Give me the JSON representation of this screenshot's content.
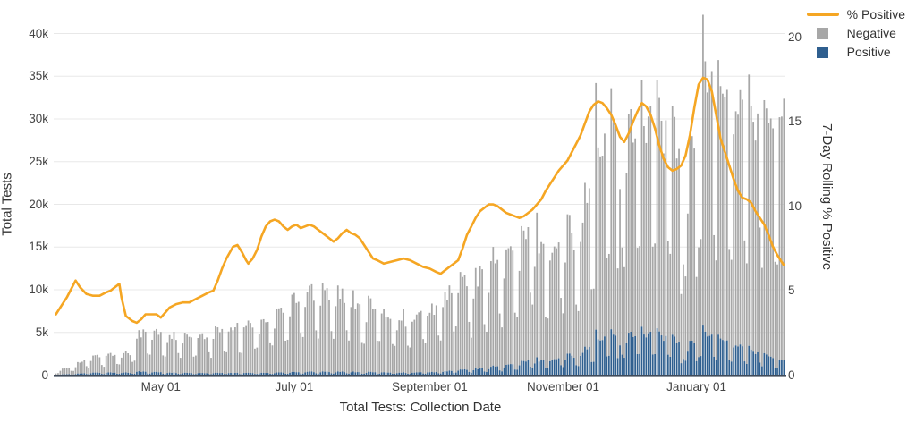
{
  "legend": {
    "items": [
      {
        "label": "% Positive",
        "type": "line",
        "color": "#f5a623"
      },
      {
        "label": "Negative",
        "type": "square",
        "color": "#a7a7a7"
      },
      {
        "label": "Positive",
        "type": "square",
        "color": "#2f5f8f"
      }
    ]
  },
  "axes": {
    "left": {
      "title": "Total Tests",
      "ticks": [
        "0",
        "5k",
        "10k",
        "15k",
        "20k",
        "25k",
        "30k",
        "35k",
        "40k"
      ],
      "tick_values": [
        0,
        5000,
        10000,
        15000,
        20000,
        25000,
        30000,
        35000,
        40000
      ]
    },
    "right": {
      "title": "7-Day Rolling % Positive",
      "ticks": [
        "0",
        "5",
        "10",
        "15",
        "20"
      ],
      "tick_values": [
        0,
        5,
        10,
        15,
        20
      ]
    },
    "x": {
      "title": "Total Tests: Collection Date",
      "tick_labels": [
        "May 01",
        "July 01",
        "September 01",
        "November 01",
        "January 01"
      ],
      "tick_days": [
        48,
        109,
        171,
        232,
        293
      ]
    }
  },
  "colors": {
    "line": "#f5a623",
    "negative_bar": "#a7a7a7",
    "positive_bar": "#2f5f8f",
    "baseline": "#404b5a",
    "gridline": "#e8e8e8",
    "tick_text": "#444444",
    "title_text": "#333333",
    "background": "#ffffff"
  },
  "chart_data": {
    "type": "combo",
    "description": "Stacked daily bars (Negative + Positive tests, left axis) with 7-day rolling percent-positive line (right axis)",
    "start_date": "2020-03-14",
    "num_days": 334,
    "xlabel": "Total Tests: Collection Date",
    "ylabel_left": "Total Tests",
    "ylabel_right": "7-Day Rolling % Positive",
    "ylim_left": [
      0,
      42500
    ],
    "ylim_right": [
      0,
      21
    ],
    "series": [
      {
        "name": "Negative",
        "type": "bar",
        "stack": "tests",
        "color": "#a7a7a7",
        "axis": "left"
      },
      {
        "name": "Positive",
        "type": "bar",
        "stack": "tests",
        "color": "#2f5f8f",
        "axis": "left"
      },
      {
        "name": "% Positive",
        "type": "line",
        "color": "#f5a623",
        "axis": "right"
      }
    ],
    "pct_positive_points": [
      [
        0,
        3.6
      ],
      [
        3,
        4.2
      ],
      [
        5,
        4.6
      ],
      [
        7,
        5.1
      ],
      [
        9,
        5.6
      ],
      [
        11,
        5.2
      ],
      [
        14,
        4.8
      ],
      [
        17,
        4.7
      ],
      [
        20,
        4.7
      ],
      [
        23,
        4.9
      ],
      [
        25,
        5.0
      ],
      [
        27,
        5.2
      ],
      [
        29,
        5.4
      ],
      [
        30,
        4.6
      ],
      [
        32,
        3.5
      ],
      [
        35,
        3.2
      ],
      [
        37,
        3.1
      ],
      [
        39,
        3.3
      ],
      [
        41,
        3.6
      ],
      [
        44,
        3.6
      ],
      [
        46,
        3.6
      ],
      [
        48,
        3.4
      ],
      [
        50,
        3.7
      ],
      [
        52,
        4.0
      ],
      [
        55,
        4.2
      ],
      [
        58,
        4.3
      ],
      [
        61,
        4.3
      ],
      [
        64,
        4.5
      ],
      [
        67,
        4.7
      ],
      [
        70,
        4.9
      ],
      [
        72,
        5.0
      ],
      [
        74,
        5.6
      ],
      [
        76,
        6.3
      ],
      [
        78,
        6.9
      ],
      [
        81,
        7.6
      ],
      [
        83,
        7.7
      ],
      [
        85,
        7.3
      ],
      [
        87,
        6.8
      ],
      [
        88,
        6.6
      ],
      [
        90,
        6.9
      ],
      [
        92,
        7.4
      ],
      [
        94,
        8.2
      ],
      [
        96,
        8.8
      ],
      [
        98,
        9.1
      ],
      [
        100,
        9.2
      ],
      [
        102,
        9.1
      ],
      [
        104,
        8.8
      ],
      [
        106,
        8.6
      ],
      [
        108,
        8.8
      ],
      [
        110,
        8.9
      ],
      [
        112,
        8.7
      ],
      [
        114,
        8.8
      ],
      [
        116,
        8.9
      ],
      [
        118,
        8.8
      ],
      [
        120,
        8.6
      ],
      [
        122,
        8.4
      ],
      [
        124,
        8.2
      ],
      [
        127,
        7.9
      ],
      [
        129,
        8.1
      ],
      [
        131,
        8.4
      ],
      [
        133,
        8.6
      ],
      [
        135,
        8.4
      ],
      [
        137,
        8.3
      ],
      [
        139,
        8.1
      ],
      [
        141,
        7.7
      ],
      [
        143,
        7.3
      ],
      [
        145,
        6.9
      ],
      [
        147,
        6.8
      ],
      [
        150,
        6.6
      ],
      [
        153,
        6.7
      ],
      [
        156,
        6.8
      ],
      [
        159,
        6.9
      ],
      [
        162,
        6.8
      ],
      [
        165,
        6.6
      ],
      [
        168,
        6.4
      ],
      [
        171,
        6.3
      ],
      [
        174,
        6.1
      ],
      [
        176,
        6.0
      ],
      [
        178,
        6.2
      ],
      [
        180,
        6.4
      ],
      [
        182,
        6.6
      ],
      [
        184,
        6.8
      ],
      [
        186,
        7.5
      ],
      [
        188,
        8.3
      ],
      [
        190,
        8.8
      ],
      [
        192,
        9.3
      ],
      [
        194,
        9.7
      ],
      [
        196,
        9.9
      ],
      [
        198,
        10.1
      ],
      [
        200,
        10.1
      ],
      [
        202,
        10.0
      ],
      [
        204,
        9.8
      ],
      [
        206,
        9.6
      ],
      [
        208,
        9.5
      ],
      [
        210,
        9.4
      ],
      [
        212,
        9.3
      ],
      [
        214,
        9.4
      ],
      [
        216,
        9.6
      ],
      [
        218,
        9.8
      ],
      [
        220,
        10.1
      ],
      [
        222,
        10.4
      ],
      [
        224,
        10.9
      ],
      [
        226,
        11.3
      ],
      [
        228,
        11.7
      ],
      [
        230,
        12.1
      ],
      [
        232,
        12.4
      ],
      [
        234,
        12.7
      ],
      [
        236,
        13.2
      ],
      [
        238,
        13.7
      ],
      [
        240,
        14.2
      ],
      [
        242,
        14.9
      ],
      [
        244,
        15.6
      ],
      [
        246,
        16.0
      ],
      [
        248,
        16.2
      ],
      [
        250,
        16.1
      ],
      [
        252,
        15.8
      ],
      [
        254,
        15.4
      ],
      [
        256,
        14.8
      ],
      [
        258,
        14.1
      ],
      [
        260,
        13.8
      ],
      [
        262,
        14.3
      ],
      [
        264,
        15.0
      ],
      [
        266,
        15.6
      ],
      [
        268,
        16.1
      ],
      [
        270,
        15.9
      ],
      [
        272,
        15.4
      ],
      [
        274,
        14.6
      ],
      [
        276,
        13.6
      ],
      [
        278,
        12.8
      ],
      [
        280,
        12.3
      ],
      [
        282,
        12.1
      ],
      [
        284,
        12.2
      ],
      [
        286,
        12.4
      ],
      [
        288,
        13.0
      ],
      [
        290,
        14.2
      ],
      [
        292,
        15.8
      ],
      [
        294,
        17.2
      ],
      [
        296,
        17.6
      ],
      [
        298,
        17.5
      ],
      [
        300,
        16.8
      ],
      [
        302,
        15.4
      ],
      [
        304,
        14.0
      ],
      [
        306,
        13.2
      ],
      [
        308,
        12.4
      ],
      [
        310,
        11.6
      ],
      [
        312,
        10.9
      ],
      [
        314,
        10.5
      ],
      [
        316,
        10.4
      ],
      [
        318,
        10.2
      ],
      [
        320,
        9.7
      ],
      [
        322,
        9.3
      ],
      [
        324,
        8.9
      ],
      [
        326,
        8.3
      ],
      [
        328,
        7.6
      ],
      [
        330,
        7.1
      ],
      [
        332,
        6.7
      ],
      [
        333,
        6.5
      ]
    ],
    "total_tests_weekday_envelope": [
      [
        0,
        400
      ],
      [
        7,
        1100
      ],
      [
        14,
        1900
      ],
      [
        21,
        2500
      ],
      [
        28,
        2650
      ],
      [
        34,
        2800
      ],
      [
        37,
        5100
      ],
      [
        45,
        5200
      ],
      [
        52,
        4900
      ],
      [
        60,
        4500
      ],
      [
        68,
        5000
      ],
      [
        75,
        5400
      ],
      [
        82,
        5900
      ],
      [
        90,
        6500
      ],
      [
        97,
        7200
      ],
      [
        103,
        7800
      ],
      [
        108,
        9200
      ],
      [
        115,
        10200
      ],
      [
        121,
        11000
      ],
      [
        127,
        10300
      ],
      [
        133,
        9500
      ],
      [
        140,
        8800
      ],
      [
        147,
        8200
      ],
      [
        154,
        7500
      ],
      [
        161,
        7000
      ],
      [
        168,
        7700
      ],
      [
        173,
        8300
      ],
      [
        178,
        9500
      ],
      [
        184,
        11900
      ],
      [
        191,
        10900
      ],
      [
        197,
        13200
      ],
      [
        204,
        14300
      ],
      [
        211,
        15200
      ],
      [
        218,
        18200
      ],
      [
        224,
        15200
      ],
      [
        229,
        16300
      ],
      [
        236,
        17800
      ],
      [
        241,
        20300
      ],
      [
        245,
        22800
      ],
      [
        248,
        26200
      ],
      [
        252,
        28600
      ],
      [
        255,
        31000
      ],
      [
        258,
        27000
      ],
      [
        262,
        29500
      ],
      [
        266,
        32500
      ],
      [
        270,
        31500
      ],
      [
        274,
        32500
      ],
      [
        278,
        30500
      ],
      [
        282,
        29000
      ],
      [
        287,
        24500
      ],
      [
        291,
        25500
      ],
      [
        296,
        38000
      ],
      [
        300,
        34500
      ],
      [
        304,
        33500
      ],
      [
        308,
        32000
      ],
      [
        312,
        33000
      ],
      [
        316,
        32500
      ],
      [
        320,
        30500
      ],
      [
        324,
        31000
      ],
      [
        328,
        30000
      ],
      [
        333,
        29500
      ]
    ],
    "positive_share_pct_points": [
      [
        0,
        11
      ],
      [
        15,
        13
      ],
      [
        30,
        12
      ],
      [
        40,
        8
      ],
      [
        55,
        6
      ],
      [
        70,
        5
      ],
      [
        85,
        4.5
      ],
      [
        100,
        4
      ],
      [
        120,
        4
      ],
      [
        140,
        4.3
      ],
      [
        160,
        4.5
      ],
      [
        175,
        4.6
      ],
      [
        185,
        5.5
      ],
      [
        195,
        7
      ],
      [
        205,
        8
      ],
      [
        215,
        10
      ],
      [
        225,
        12
      ],
      [
        235,
        13.5
      ],
      [
        243,
        15
      ],
      [
        250,
        16
      ],
      [
        258,
        16
      ],
      [
        266,
        16.5
      ],
      [
        274,
        16
      ],
      [
        282,
        15
      ],
      [
        290,
        14.5
      ],
      [
        296,
        14
      ],
      [
        302,
        13
      ],
      [
        308,
        12
      ],
      [
        314,
        10.5
      ],
      [
        320,
        9
      ],
      [
        326,
        7.5
      ],
      [
        333,
        5.5
      ]
    ],
    "weekday_factors_sat_first": [
      0.5,
      0.44,
      0.8,
      1.0,
      0.98,
      0.96,
      0.92
    ],
    "daily_jitter": 0.13,
    "special_day_totals": [
      [
        247,
        34200
      ],
      [
        254,
        33600
      ],
      [
        257,
        12500
      ],
      [
        268,
        34600
      ],
      [
        275,
        34600
      ],
      [
        282,
        31500
      ],
      [
        286,
        9500
      ],
      [
        293,
        11500
      ],
      [
        296,
        42200
      ],
      [
        303,
        36900
      ],
      [
        317,
        35200
      ],
      [
        324,
        32200
      ],
      [
        331,
        30200
      ]
    ]
  }
}
